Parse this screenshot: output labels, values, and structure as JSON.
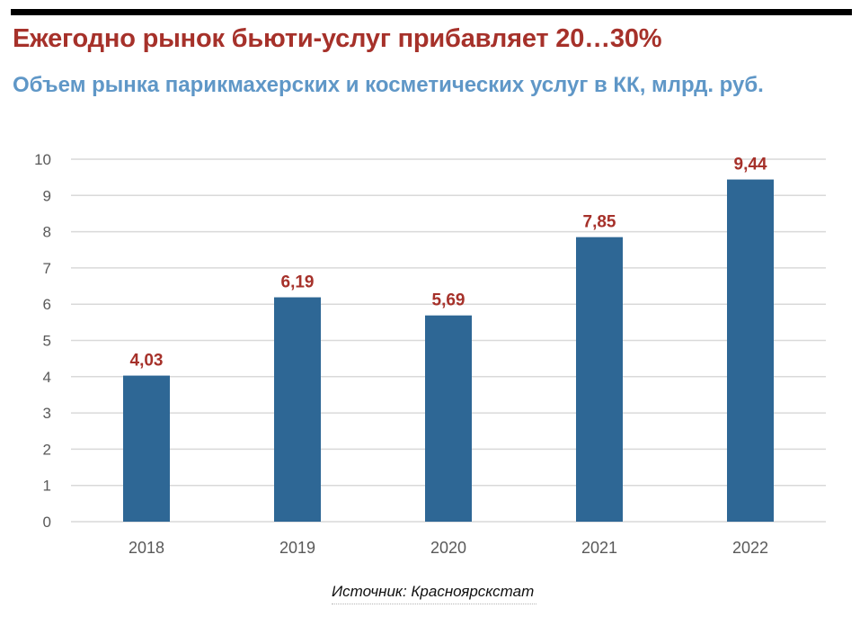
{
  "header": {
    "title": "Ежегодно рынок бьюти-услуг прибавляет 20…30%",
    "subtitle": "Объем рынка парикмахерских и косметических услуг в КК, млрд. руб."
  },
  "footer": {
    "source": "Источник: Красноярскстат"
  },
  "colors": {
    "bar": "#2e6795",
    "label": "#a6312a",
    "title": "#a6312a",
    "subtitle": "#5f97c7",
    "grid": "#d9d9d9",
    "tick": "#595959"
  },
  "chart_data": {
    "type": "bar",
    "title": "Объем рынка парикмахерских и косметических услуг в КК, млрд. руб.",
    "xlabel": "",
    "ylabel": "",
    "categories": [
      "2018",
      "2019",
      "2020",
      "2021",
      "2022"
    ],
    "values": [
      4.03,
      6.19,
      5.69,
      7.85,
      9.44
    ],
    "value_labels": [
      "4,03",
      "6,19",
      "5,69",
      "7,85",
      "9,44"
    ],
    "ylim": [
      0,
      10
    ],
    "yticks": [
      "0",
      "1",
      "2",
      "3",
      "4",
      "5",
      "6",
      "7",
      "8",
      "9",
      "10"
    ],
    "grid": true,
    "legend": "none"
  }
}
